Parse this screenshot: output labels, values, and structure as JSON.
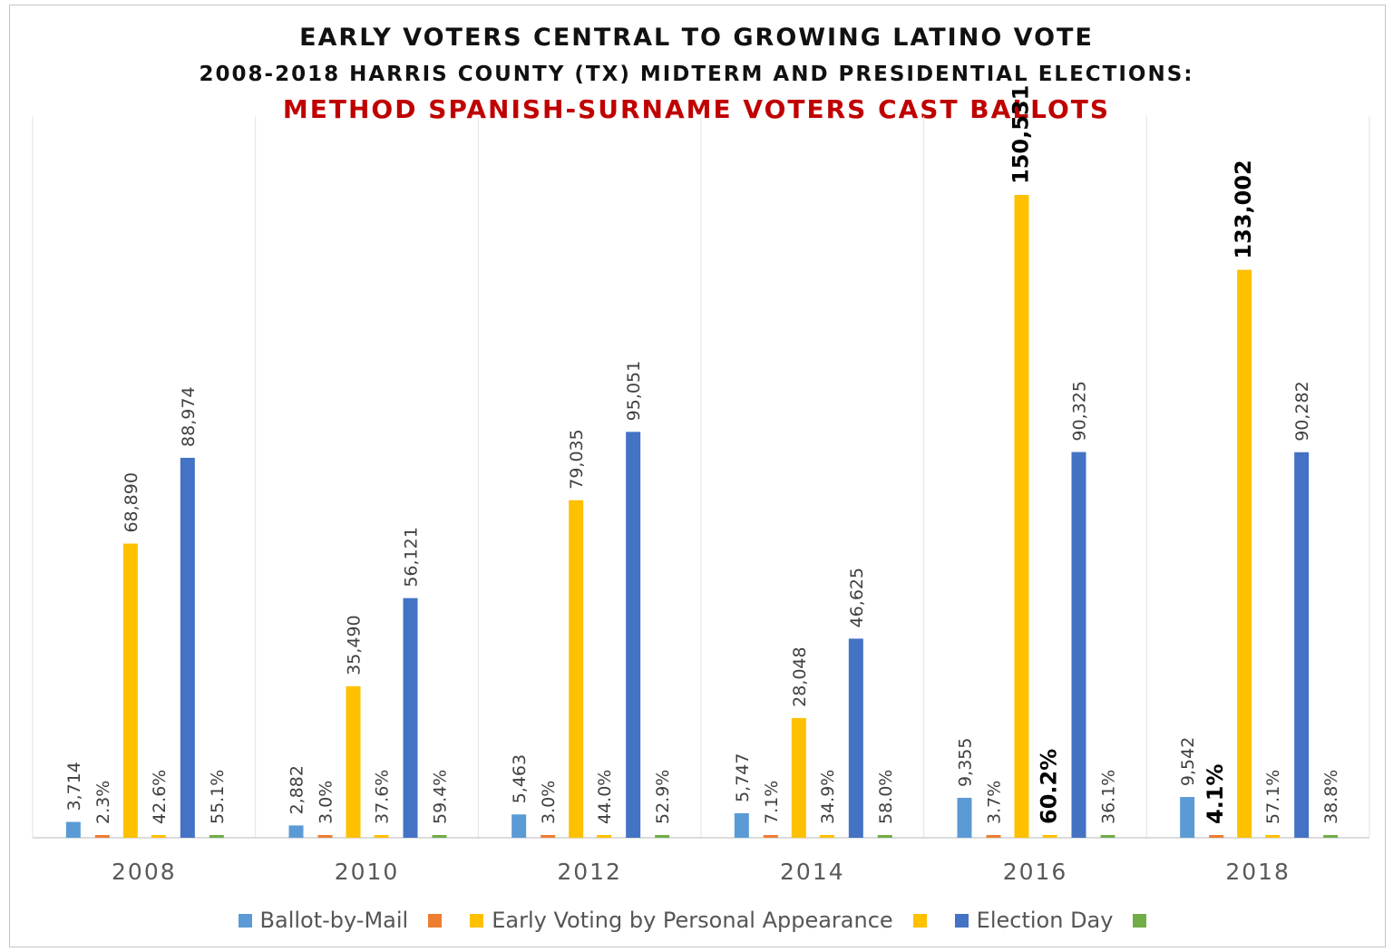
{
  "chart_data": {
    "type": "bar",
    "title": "EARLY VOTERS CENTRAL TO GROWING LATINO VOTE",
    "subtitle": "2008-2018 HARRIS COUNTY (TX) MIDTERM AND PRESIDENTIAL ELECTIONS:",
    "subtitle2": "METHOD  SPANISH-SURNAME VOTERS CAST BALLOTS",
    "categories": [
      "2008",
      "2010",
      "2012",
      "2014",
      "2016",
      "2018"
    ],
    "ylim": [
      0,
      155000
    ],
    "grid": "vertical separators between categories",
    "legend_position": "bottom",
    "series": [
      {
        "name": "Ballot-by-Mail",
        "color": "#5b9bd5",
        "kind": "value",
        "values": [
          3714,
          2882,
          5463,
          5747,
          9355,
          9542
        ],
        "labels": [
          "3,714",
          "2,882",
          "5,463",
          "5,747",
          "9,355",
          "9,542"
        ]
      },
      {
        "name": "",
        "color": "#ed7d31",
        "kind": "percent",
        "values": [
          2.3,
          3.0,
          3.0,
          7.1,
          3.7,
          4.1
        ],
        "labels": [
          "2.3%",
          "3.0%",
          "3.0%",
          "7.1%",
          "3.7%",
          "4.1%"
        ]
      },
      {
        "name": "Early Voting by Personal Appearance",
        "color": "#ffc000",
        "kind": "value",
        "values": [
          68890,
          35490,
          79035,
          28048,
          150531,
          133002
        ],
        "labels": [
          "68,890",
          "35,490",
          "79,035",
          "28,048",
          "150,531",
          "133,002"
        ]
      },
      {
        "name": "",
        "color": "#ffc000",
        "kind": "percent",
        "values": [
          42.6,
          37.6,
          44.0,
          34.9,
          60.2,
          57.1
        ],
        "labels": [
          "42.6%",
          "37.6%",
          "44.0%",
          "34.9%",
          "60.2%",
          "57.1%"
        ]
      },
      {
        "name": "Election Day",
        "color": "#4472c4",
        "kind": "value",
        "values": [
          88974,
          56121,
          95051,
          46625,
          90325,
          90282
        ],
        "labels": [
          "88,974",
          "56,121",
          "95,051",
          "46,625",
          "90,325",
          "90,282"
        ]
      },
      {
        "name": "",
        "color": "#70ad47",
        "kind": "percent",
        "values": [
          55.1,
          59.4,
          52.9,
          58.0,
          36.1,
          38.8
        ],
        "labels": [
          "55.1%",
          "59.4%",
          "52.9%",
          "58.0%",
          "36.1%",
          "38.8%"
        ]
      }
    ],
    "bold_labels": [
      {
        "series": 2,
        "category": 4
      },
      {
        "series": 3,
        "category": 4
      },
      {
        "series": 1,
        "category": 5
      },
      {
        "series": 2,
        "category": 5
      }
    ]
  }
}
